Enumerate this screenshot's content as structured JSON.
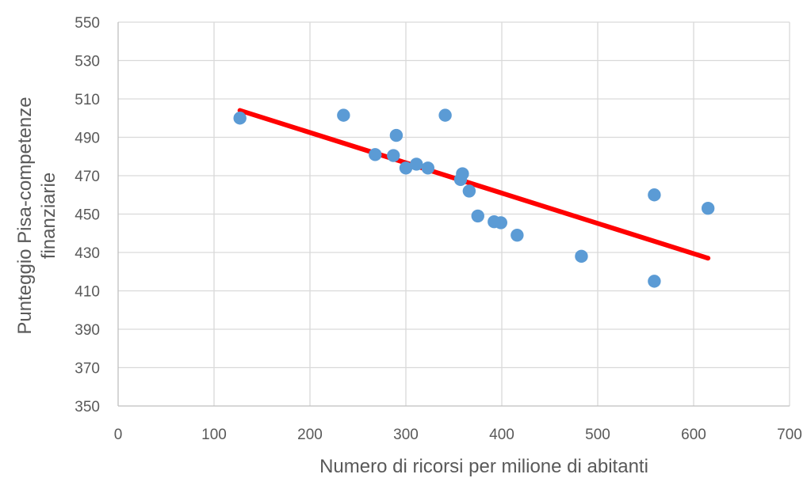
{
  "chart_data": {
    "type": "scatter",
    "title": "",
    "xlabel": "Numero di ricorsi per milione di abitanti",
    "ylabel_lines": [
      "Punteggio Pisa-competenze",
      "finanziarie"
    ],
    "xlim": [
      0,
      700
    ],
    "ylim": [
      350,
      550
    ],
    "xticks": [
      0,
      100,
      200,
      300,
      400,
      500,
      600,
      700
    ],
    "yticks": [
      350,
      370,
      390,
      410,
      430,
      450,
      470,
      490,
      510,
      530,
      550
    ],
    "grid": true,
    "legend": "none",
    "series": [
      {
        "marker_color": "#5b9bd5",
        "points": [
          {
            "x": 127,
            "y": 500
          },
          {
            "x": 235,
            "y": 501.5
          },
          {
            "x": 268,
            "y": 481
          },
          {
            "x": 287,
            "y": 480.5
          },
          {
            "x": 290,
            "y": 491
          },
          {
            "x": 300,
            "y": 474
          },
          {
            "x": 311,
            "y": 476
          },
          {
            "x": 323,
            "y": 474
          },
          {
            "x": 341,
            "y": 501.5
          },
          {
            "x": 357,
            "y": 468
          },
          {
            "x": 359,
            "y": 471
          },
          {
            "x": 366,
            "y": 462
          },
          {
            "x": 375,
            "y": 449
          },
          {
            "x": 392,
            "y": 446
          },
          {
            "x": 399,
            "y": 445.5
          },
          {
            "x": 416,
            "y": 439
          },
          {
            "x": 483,
            "y": 428
          },
          {
            "x": 559,
            "y": 415
          },
          {
            "x": 559,
            "y": 460
          },
          {
            "x": 615,
            "y": 453
          }
        ]
      }
    ],
    "trendline": {
      "type": "linear",
      "color": "#ff0000",
      "x": [
        127,
        615
      ],
      "y": [
        504,
        427
      ]
    }
  }
}
